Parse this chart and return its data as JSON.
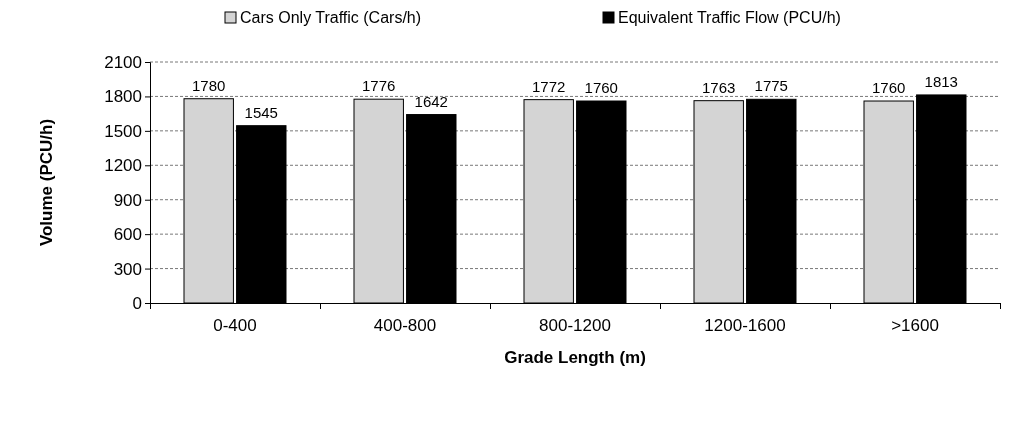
{
  "chart_data": {
    "type": "bar",
    "xlabel": "Grade Length (m)",
    "ylabel": "Volume (PCU/h)",
    "categories": [
      "0-400",
      "400-800",
      "800-1200",
      "1200-1600",
      ">1600"
    ],
    "series": [
      {
        "name": "Cars Only Traffic (Cars/h)",
        "color": "#d4d4d4",
        "values": [
          1780,
          1776,
          1772,
          1763,
          1760
        ]
      },
      {
        "name": "Equivalent Traffic Flow (PCU/h)",
        "color": "#000000",
        "values": [
          1545,
          1642,
          1760,
          1775,
          1813
        ]
      }
    ],
    "ylim": [
      0,
      2100
    ],
    "yticks": [
      0,
      300,
      600,
      900,
      1200,
      1500,
      1800,
      2100
    ],
    "grid": "y",
    "legend": "top",
    "data_labels": true
  }
}
